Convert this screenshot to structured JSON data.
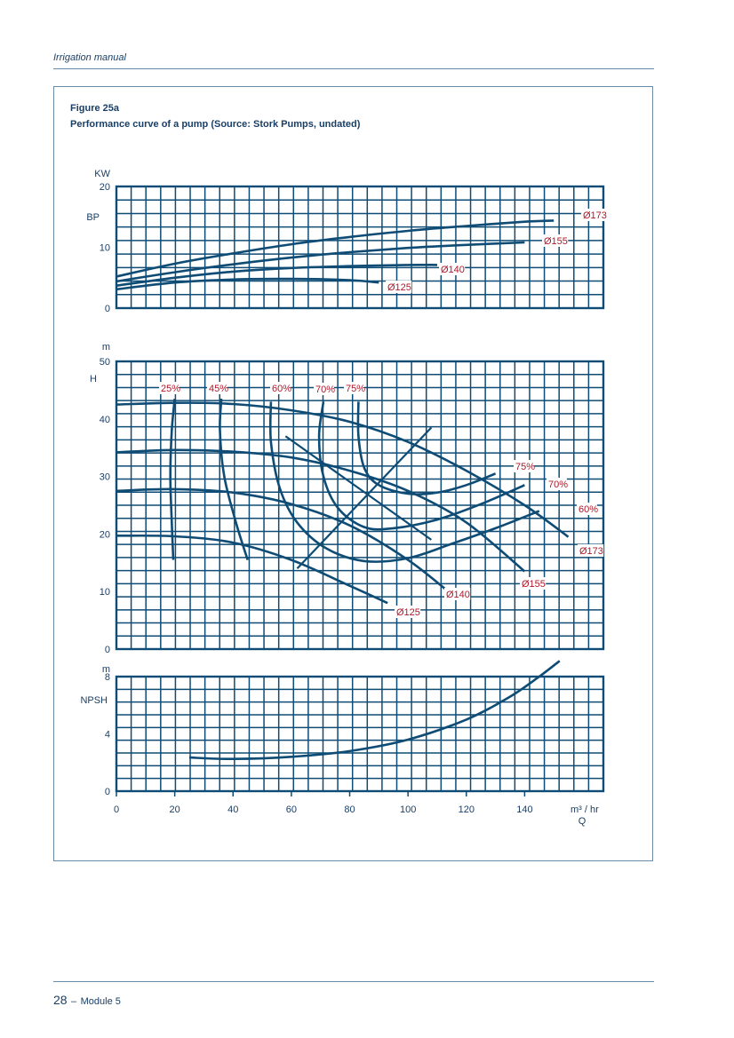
{
  "header": {
    "title": "Irrigation manual"
  },
  "figure": {
    "label": "Figure 25a",
    "caption": "Performance curve of a pump (Source: Stork Pumps, undated)"
  },
  "footer": {
    "page": "28",
    "dash": "–",
    "module": "Module 5"
  },
  "colors": {
    "curve": "#0f4c75",
    "grid": "#0f4c75",
    "label_red": "#b0172a",
    "axis_text": "#1a3f66"
  },
  "chart_data": [
    {
      "panel": "power",
      "type": "line",
      "ylabel": "BP",
      "yunit": "KW",
      "ylim": [
        0,
        20
      ],
      "yticks": [
        0,
        10,
        20
      ],
      "xlim": [
        0,
        167
      ],
      "series": [
        {
          "name": "Ø173",
          "x": [
            0,
            20,
            40,
            60,
            80,
            100,
            120,
            140,
            150
          ],
          "y": [
            5.2,
            7.3,
            9.0,
            10.5,
            11.7,
            12.7,
            13.5,
            14.2,
            14.4
          ]
        },
        {
          "name": "Ø155",
          "x": [
            0,
            20,
            40,
            60,
            80,
            100,
            120,
            140
          ],
          "y": [
            4.4,
            5.9,
            7.2,
            8.3,
            9.2,
            9.9,
            10.4,
            10.8
          ]
        },
        {
          "name": "Ø140",
          "x": [
            0,
            20,
            40,
            60,
            80,
            100,
            110
          ],
          "y": [
            3.7,
            5.0,
            6.0,
            6.6,
            6.9,
            7.1,
            7.1
          ]
        },
        {
          "name": "Ø125",
          "x": [
            0,
            20,
            40,
            60,
            80,
            90
          ],
          "y": [
            3.1,
            4.2,
            4.7,
            4.8,
            4.6,
            4.2
          ]
        }
      ]
    },
    {
      "panel": "head",
      "type": "line",
      "ylabel": "H",
      "yunit": "m",
      "ylim": [
        0,
        50
      ],
      "yticks": [
        0,
        10,
        20,
        30,
        40,
        50
      ],
      "xlim": [
        0,
        167
      ],
      "series": [
        {
          "name": "Ø173",
          "x": [
            0,
            20,
            40,
            60,
            80,
            100,
            120,
            140,
            155
          ],
          "y": [
            42.5,
            42.8,
            42.6,
            41.5,
            39.5,
            36.0,
            31.0,
            25.0,
            19.5
          ]
        },
        {
          "name": "Ø155",
          "x": [
            0,
            20,
            40,
            60,
            80,
            100,
            120,
            140
          ],
          "y": [
            34.2,
            34.6,
            34.3,
            33.3,
            31.0,
            27.5,
            22.0,
            13.5
          ]
        },
        {
          "name": "Ø140",
          "x": [
            0,
            20,
            40,
            60,
            80,
            100,
            115
          ],
          "y": [
            27.5,
            27.8,
            27.2,
            25.2,
            21.5,
            15.5,
            9.5
          ]
        },
        {
          "name": "Ø125",
          "x": [
            0,
            20,
            40,
            60,
            80,
            93
          ],
          "y": [
            19.7,
            19.6,
            18.5,
            15.5,
            11.0,
            8.0
          ]
        }
      ],
      "efficiency_curves": [
        {
          "name": "25%",
          "x": [
            20,
            19,
            18.5,
            19,
            19.5
          ],
          "y": [
            43.5,
            38,
            30,
            22,
            15.5
          ]
        },
        {
          "name": "45%",
          "x": [
            36,
            35.5,
            37,
            41,
            45
          ],
          "y": [
            43.5,
            38,
            30,
            22,
            15.5
          ]
        },
        {
          "name": "60%",
          "x": [
            53,
            53,
            56,
            62,
            72,
            85,
            100,
            115,
            130,
            145
          ],
          "y": [
            43,
            36,
            28,
            22,
            17.5,
            15.3,
            15.8,
            18.3,
            21.0,
            24.0
          ]
        },
        {
          "name": "70%",
          "x": [
            71,
            69.5,
            71,
            76,
            85,
            95,
            110,
            125,
            140
          ],
          "y": [
            43,
            37,
            30,
            24.5,
            21.2,
            21.0,
            22.5,
            25.2,
            28.5
          ]
        },
        {
          "name": "75%",
          "x": [
            83,
            83,
            85,
            90,
            100,
            110,
            120,
            130
          ],
          "y": [
            43,
            37,
            31.5,
            28.5,
            27.0,
            27.2,
            28.5,
            30.5
          ]
        }
      ],
      "system_curves": [
        {
          "x": [
            62,
            108
          ],
          "y": [
            14,
            38.5
          ]
        },
        {
          "x": [
            58,
            108
          ],
          "y": [
            37,
            19
          ]
        }
      ]
    },
    {
      "panel": "npsh",
      "type": "line",
      "ylabel": "NPSH",
      "yunit": "m",
      "ylim": [
        0,
        8
      ],
      "yticks": [
        0,
        4,
        8
      ],
      "xlim": [
        0,
        167
      ],
      "xticks": [
        0,
        20,
        40,
        60,
        80,
        100,
        120,
        140
      ],
      "xunit": "m³ / hr",
      "xlabel": "Q",
      "series": [
        {
          "name": "NPSH",
          "x": [
            25,
            40,
            60,
            80,
            100,
            120,
            135,
            145,
            152
          ],
          "y": [
            2.35,
            2.25,
            2.4,
            2.8,
            3.6,
            5.0,
            6.6,
            8.0,
            9.1
          ]
        }
      ]
    }
  ],
  "labels": {
    "power": [
      "Ø173",
      "Ø155",
      "Ø140",
      "Ø125"
    ],
    "head_dia": [
      "Ø173",
      "Ø155",
      "Ø140",
      "Ø125"
    ],
    "head_eff_top": [
      "25%",
      "45%",
      "60%",
      "70%",
      "75%"
    ],
    "head_eff_side": [
      "75%",
      "70%",
      "60%"
    ]
  }
}
